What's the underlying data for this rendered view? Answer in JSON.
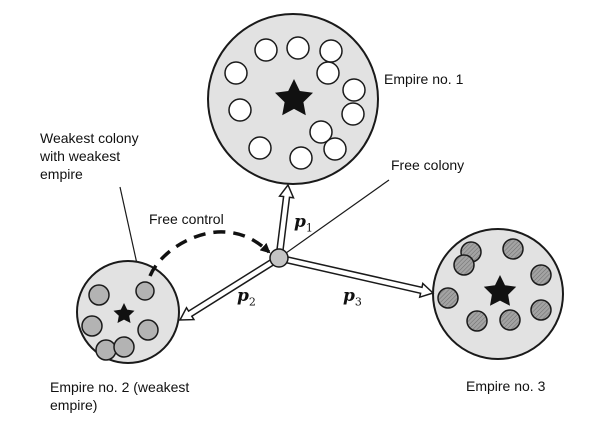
{
  "labels": {
    "empire1": "Empire no. 1",
    "empire2": "Empire no. 2 (weakest\nempire)",
    "empire3": "Empire no. 3",
    "weakest_colony": "Weakest colony\nwith weakest\nempire",
    "free_colony": "Free colony",
    "free_control": "Free control"
  },
  "probabilities": [
    {
      "symbol": "p",
      "index": "1"
    },
    {
      "symbol": "p",
      "index": "2"
    },
    {
      "symbol": "p",
      "index": "3"
    }
  ],
  "colors": {
    "empire_fill": "#e2e2e2",
    "colony_fill_empire1": "#ffffff",
    "colony_fill_empire2": "#b3b3b3",
    "colony_fill_empire3": "#a3a3a3",
    "free_colony_fill": "#c4c4c4",
    "stroke": "#1a1a1a"
  },
  "icons": {
    "imperialist": "star-icon",
    "arrow": "hollow-arrow-icon"
  }
}
